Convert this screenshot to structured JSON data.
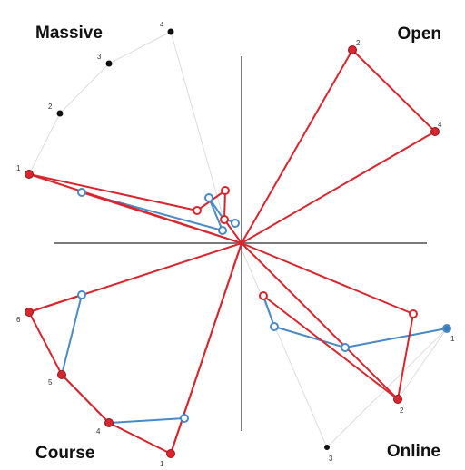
{
  "corner_labels": {
    "top_left": "Massive",
    "top_right": "Open",
    "bottom_left": "Course",
    "bottom_right": "Online"
  },
  "point_labels": {
    "massive": [
      "1",
      "2",
      "3",
      "4"
    ],
    "open": [
      "2",
      "4"
    ],
    "course": [
      "1",
      "4",
      "5",
      "6"
    ],
    "online": [
      "1",
      "2",
      "3"
    ]
  },
  "colors": {
    "red": "#d9262e",
    "blue": "#4a8ac6",
    "axis": "#7a7a7a",
    "gray_line": "#dddddd",
    "black_dot": "#111111"
  }
}
